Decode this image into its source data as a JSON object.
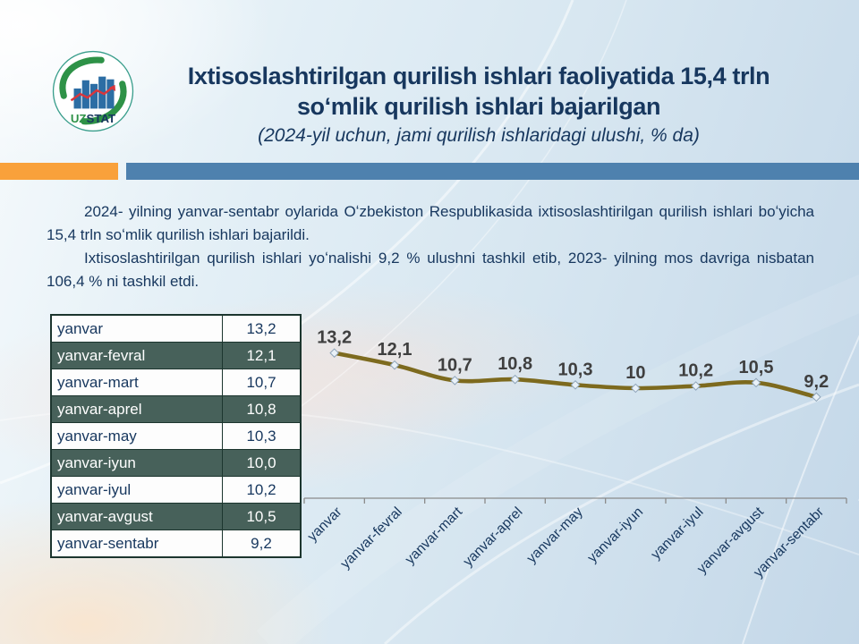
{
  "header": {
    "title_line1": "Ixtisoslashtirilgan qurilish ishlari faoliyatida 15,4 trln",
    "title_line2": "soʻmlik qurilish ishlari bajarilgan",
    "subtitle": "(2024-yil  uchun, jami qurilish ishlaridagi ulushi, % da)",
    "logo": {
      "uz": "UZ",
      "stat": "STAT"
    }
  },
  "body": {
    "paragraph1": "2024- yilning yanvar-sentabr oylarida Oʻzbekiston Respublikasida ixtisoslashtirilgan qurilish ishlari boʻyicha 15,4 trln soʻmlik qurilish ishlari bajarildi.",
    "paragraph2": "Ixtisoslashtirilgan qurilish ishlari yoʻnalishi 9,2 % ulushni tashkil etib, 2023- yilning mos davriga nisbatan 106,4 % ni tashkil etdi."
  },
  "table": {
    "rows": [
      {
        "label": "yanvar",
        "value": "13,2"
      },
      {
        "label": "yanvar-fevral",
        "value": "12,1"
      },
      {
        "label": "yanvar-mart",
        "value": "10,7"
      },
      {
        "label": "yanvar-aprel",
        "value": "10,8"
      },
      {
        "label": "yanvar-may",
        "value": "10,3"
      },
      {
        "label": "yanvar-iyun",
        "value": "10,0"
      },
      {
        "label": "yanvar-iyul",
        "value": "10,2"
      },
      {
        "label": "yanvar-avgust",
        "value": "10,5"
      },
      {
        "label": "yanvar-sentabr",
        "value": "9,2"
      }
    ]
  },
  "chart_data": {
    "type": "line",
    "categories": [
      "yanvar",
      "yanvar-fevral",
      "yanvar-mart",
      "yanvar-aprel",
      "yanvar-may",
      "yanvar-iyun",
      "yanvar-iyul",
      "yanvar-avgust",
      "yanvar-sentabr"
    ],
    "values": [
      13.2,
      12.1,
      10.7,
      10.8,
      10.3,
      10.0,
      10.2,
      10.5,
      9.2
    ],
    "point_labels": [
      "13,2",
      "12,1",
      "10,7",
      "10,8",
      "10,3",
      "10",
      "10,2",
      "10,5",
      "9,2"
    ],
    "title": "",
    "xlabel": "",
    "ylabel": "",
    "ylim": [
      0,
      16
    ],
    "grid": false,
    "legend": "none",
    "marker": "diamond"
  },
  "colors": {
    "navy_text": "#17375E",
    "accent_orange": "#F9A13B",
    "accent_steel_blue": "#4E81AE",
    "table_dark_row": "#47615A",
    "table_border": "#1C352E",
    "chart_line": "#7D6A1E",
    "chart_label": "#3F3F3F",
    "marker_fill": "#E9F1F8",
    "marker_stroke": "#8FA5BA",
    "axis_gray": "#8A8A8A",
    "logo_green": "#2E9247",
    "logo_bar_blue": "#2C6DA4",
    "logo_red": "#D9363C"
  }
}
